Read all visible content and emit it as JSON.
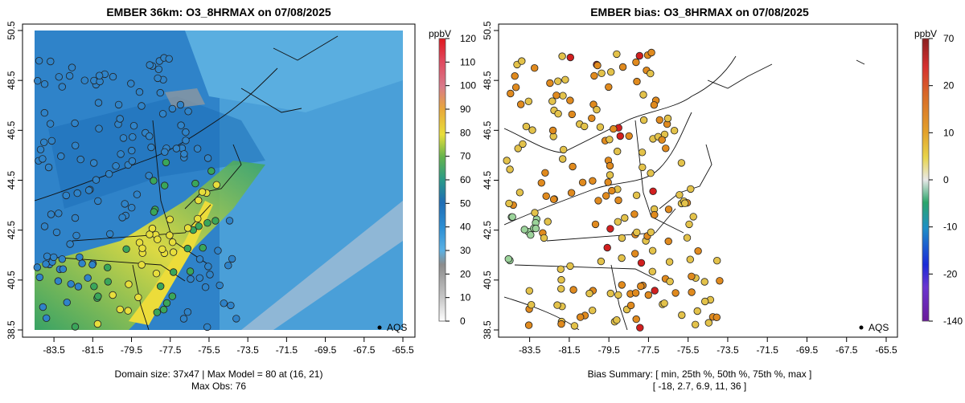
{
  "panels": [
    {
      "title": "EMBER 36km: O3_8HRMAX on 07/08/2025",
      "caption_line1": "Domain size: 37x47 | Max Model = 80 at (16, 21)",
      "caption_line2": "Max Obs: 76",
      "legend_symbol_label": "AQS"
    },
    {
      "title": "EMBER bias: O3_8HRMAX on 07/08/2025",
      "caption_line1": "Bias Summary: [ min, 25th %, 50th %, 75th %, max ]",
      "caption_line2": "[ -18,  2.7,  6.9,  11,  36 ]",
      "legend_symbol_label": "AQS"
    }
  ],
  "colors": {
    "ocean_blue": "#4a9fd8",
    "land_blue": "#2f83c9",
    "deep_blue": "#1d6fb8",
    "green": "#3aa65a",
    "yellow": "#e7de3c",
    "gray": "#9a9a9a",
    "bias_yellow": "#e3c24a",
    "bias_orange": "#e08a1e",
    "bias_red": "#d11f1f"
  },
  "chart_data": [
    {
      "type": "heatmap",
      "title": "EMBER 36km: O3_8HRMAX on 07/08/2025",
      "x_ticks": [
        "-83.5",
        "-81.5",
        "-79.5",
        "-77.5",
        "-75.5",
        "-73.5",
        "-71.5",
        "-69.5",
        "-67.5",
        "-65.5"
      ],
      "y_ticks": [
        "38.5",
        "40.5",
        "42.5",
        "44.5",
        "46.5",
        "48.5",
        "50.5"
      ],
      "xlim": [
        -84.5,
        -65.5
      ],
      "ylim": [
        38.5,
        50.5
      ],
      "colorbar": {
        "unit": "ppbV",
        "ticks": [
          "0",
          "10",
          "20",
          "30",
          "40",
          "50",
          "60",
          "70",
          "80",
          "90",
          "100",
          "110",
          "120"
        ],
        "range": [
          0,
          120
        ]
      },
      "domain_size": "37x47",
      "max_model": 80,
      "max_model_location": "(16, 21)",
      "max_obs": 76,
      "series": [
        {
          "name": "AQS",
          "marker": "circle"
        }
      ]
    },
    {
      "type": "scatter",
      "title": "EMBER bias: O3_8HRMAX on 07/08/2025",
      "x_ticks": [
        "-83.5",
        "-81.5",
        "-79.5",
        "-77.5",
        "-75.5",
        "-73.5",
        "-71.5",
        "-69.5",
        "-67.5",
        "-65.5"
      ],
      "y_ticks": [
        "38.5",
        "40.5",
        "42.5",
        "44.5",
        "46.5",
        "48.5",
        "50.5"
      ],
      "xlim": [
        -84.5,
        -65.5
      ],
      "ylim": [
        38.5,
        50.5
      ],
      "colorbar": {
        "unit": "ppbV",
        "ticks": [
          "-140",
          "-20",
          "-10",
          "0",
          "10",
          "20",
          "70"
        ]
      },
      "bias_summary": {
        "min": -18,
        "p25": 2.7,
        "p50": 6.9,
        "p75": 11,
        "max": 36
      },
      "series": [
        {
          "name": "AQS",
          "marker": "circle"
        }
      ]
    }
  ]
}
